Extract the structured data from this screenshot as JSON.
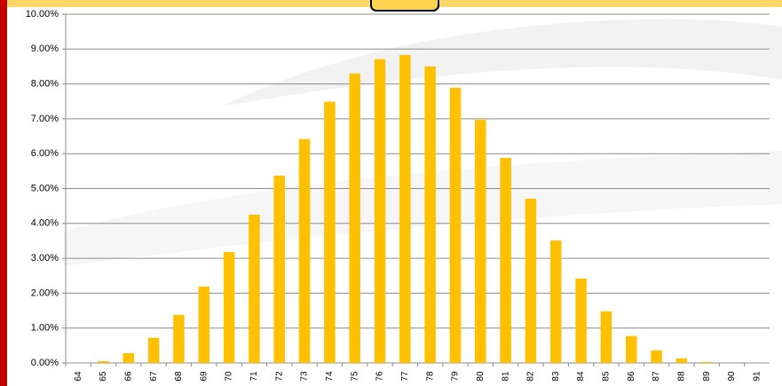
{
  "chart_data": {
    "type": "bar",
    "categories": [
      "64",
      "65",
      "66",
      "67",
      "68",
      "69",
      "70",
      "71",
      "72",
      "73",
      "74",
      "75",
      "76",
      "77",
      "78",
      "79",
      "80",
      "81",
      "82",
      "83",
      "84",
      "85",
      "86",
      "87",
      "88",
      "89",
      "90",
      "91"
    ],
    "values": [
      0,
      0.05,
      0.28,
      0.72,
      1.38,
      2.19,
      3.18,
      4.25,
      5.37,
      6.42,
      7.49,
      8.3,
      8.71,
      8.83,
      8.5,
      7.89,
      6.97,
      5.88,
      4.71,
      3.51,
      2.42,
      1.48,
      0.77,
      0.36,
      0.13,
      0.03,
      0,
      0
    ],
    "color": "#ffc000",
    "ylim": [
      0,
      10
    ],
    "yticks": [
      {
        "value": 0,
        "label": "0.00%"
      },
      {
        "value": 1,
        "label": "1.00%"
      },
      {
        "value": 2,
        "label": "2.00%"
      },
      {
        "value": 3,
        "label": "3.00%"
      },
      {
        "value": 4,
        "label": "4.00%"
      },
      {
        "value": 5,
        "label": "5.00%"
      },
      {
        "value": 6,
        "label": "6.00%"
      },
      {
        "value": 7,
        "label": "7.00%"
      },
      {
        "value": 8,
        "label": "8.00%"
      },
      {
        "value": 9,
        "label": "9.00%"
      },
      {
        "value": 10,
        "label": "10.00%"
      }
    ],
    "grid": true
  }
}
